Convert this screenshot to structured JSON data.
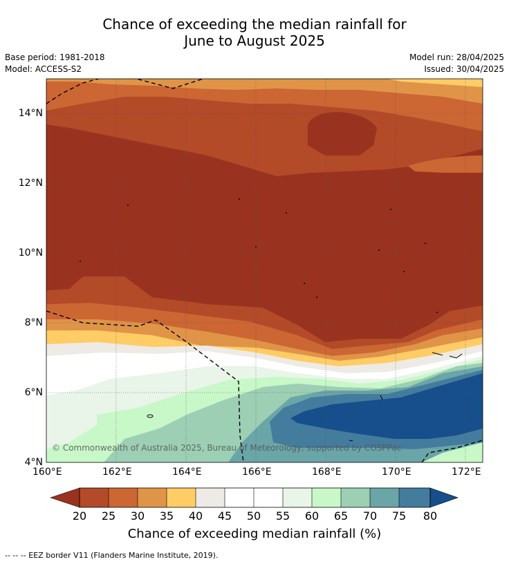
{
  "title": {
    "line1": "Chance of exceeding the median rainfall for",
    "line2": "June to August 2025"
  },
  "meta": {
    "base_period": "Base period: 1981-2018",
    "model": "Model: ACCESS-S2",
    "model_run": "Model run: 28/04/2025",
    "issued": "Issued: 30/04/2025"
  },
  "map": {
    "x_ticks": [
      "160°E",
      "162°E",
      "164°E",
      "166°E",
      "168°E",
      "170°E",
      "172°E"
    ],
    "y_ticks": [
      "14°N",
      "12°N",
      "10°N",
      "8°N",
      "6°N",
      "4°N"
    ],
    "watermark": "© Commonwealth of Australia 2025, Bureau of Meteorology, supported by COSPPac",
    "legend_note": "--  --  -- EEZ border V11 (Flanders Marine Institute, 2019)."
  },
  "colorbar": {
    "title": "Chance of exceeding median rainfall (%)",
    "labels": [
      "20",
      "25",
      "30",
      "35",
      "40",
      "45",
      "50",
      "55",
      "60",
      "65",
      "70",
      "75",
      "80"
    ],
    "colors": {
      "below20": "#99331f",
      "b20_25": "#b34a28",
      "b25_30": "#cc6633",
      "b30_35": "#e09448",
      "b35_40": "#ffcc66",
      "b40_45": "#eeebe6",
      "b45_50": "#ffffff",
      "b50_55": "#ffffff",
      "b55_60": "#e8f5e8",
      "b60_65": "#c8f7c8",
      "b65_70": "#9ccfb4",
      "b70_75": "#6aa5a8",
      "b75_80": "#447c9e",
      "above80": "#164f8c"
    }
  }
}
